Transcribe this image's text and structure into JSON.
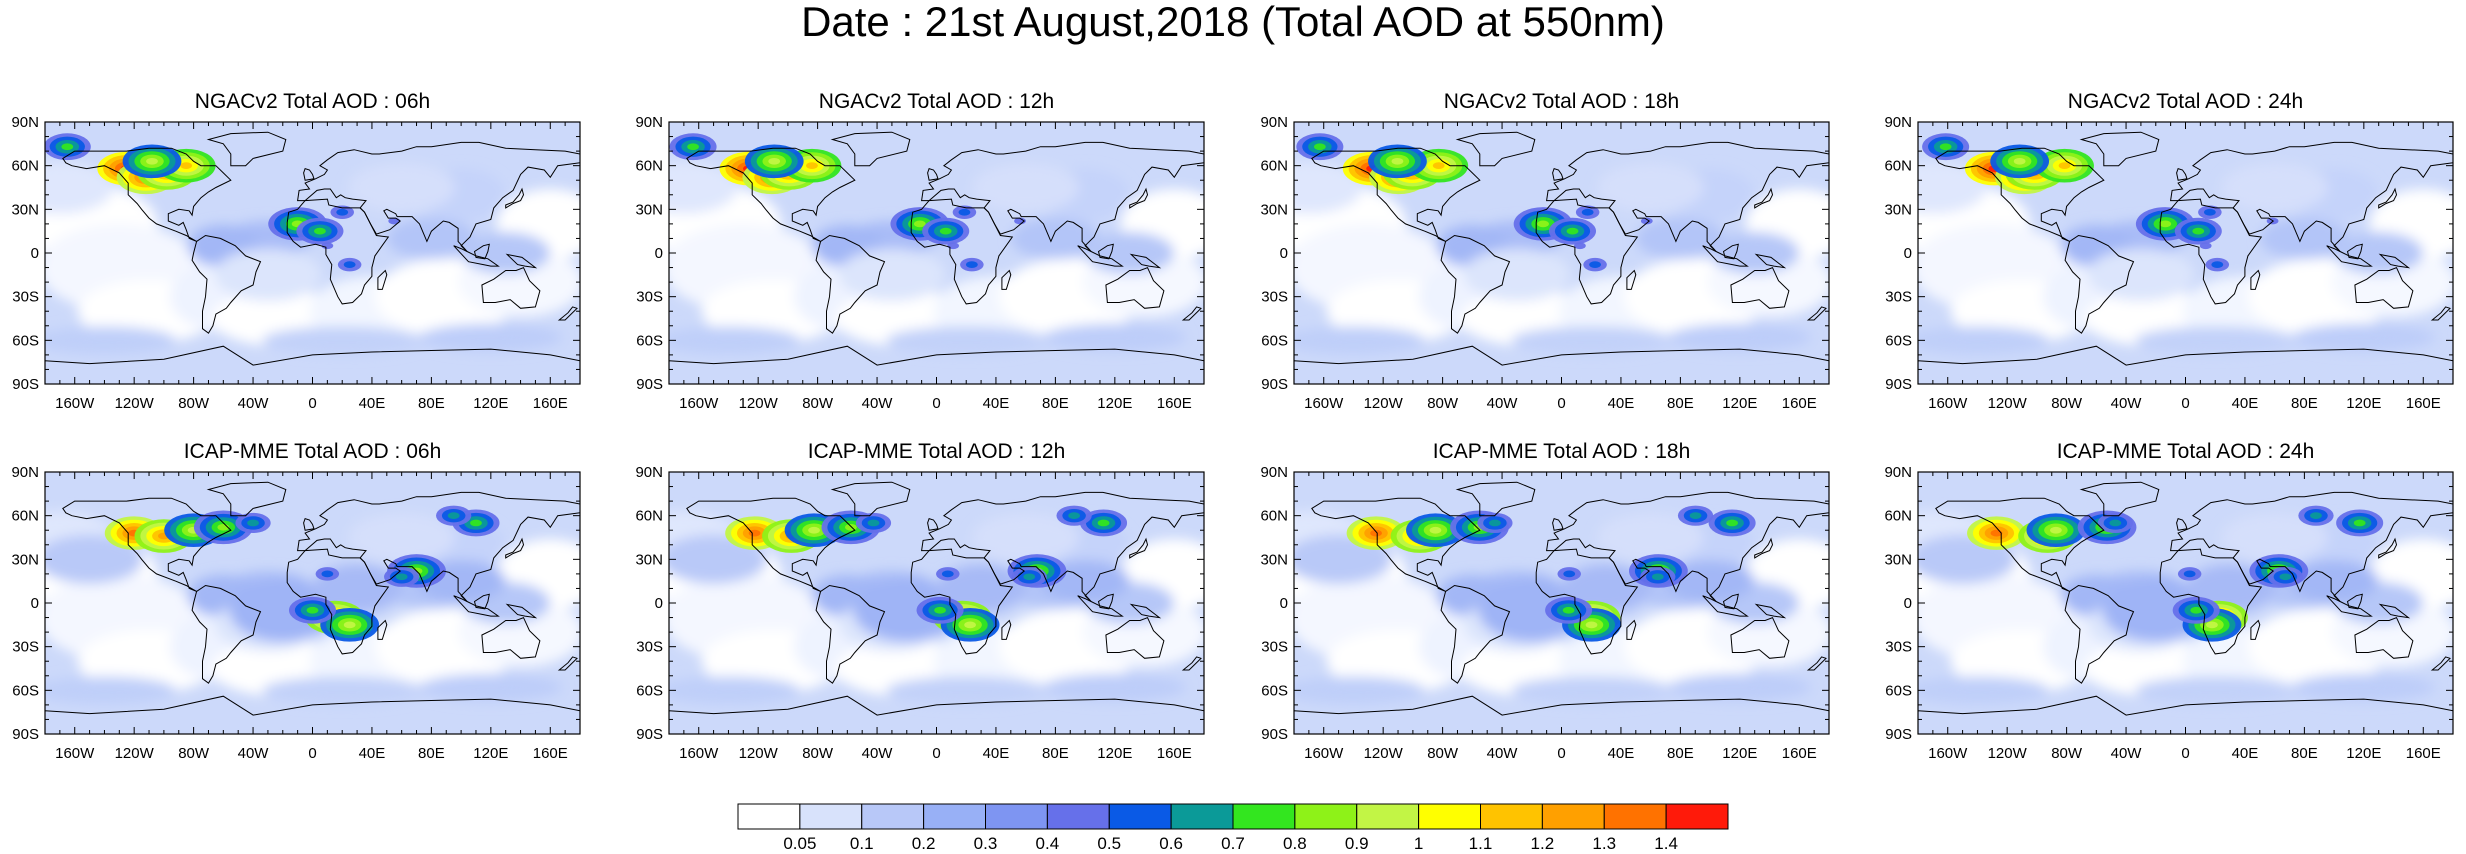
{
  "title": "Date : 21st August,2018 (Total AOD at 550nm)",
  "x_tick_labels": [
    "160W",
    "120W",
    "80W",
    "40W",
    "0",
    "40E",
    "80E",
    "120E",
    "160E"
  ],
  "y_tick_labels": [
    "90N",
    "60N",
    "30N",
    "0",
    "30S",
    "60S",
    "90S"
  ],
  "panels": [
    {
      "title": "NGACv2 Total AOD : 06h",
      "model": "NGACv2",
      "hour": "06h"
    },
    {
      "title": "NGACv2 Total AOD : 12h",
      "model": "NGACv2",
      "hour": "12h"
    },
    {
      "title": "NGACv2 Total AOD : 18h",
      "model": "NGACv2",
      "hour": "18h"
    },
    {
      "title": "NGACv2 Total AOD : 24h",
      "model": "NGACv2",
      "hour": "24h"
    },
    {
      "title": "ICAP-MME Total AOD : 06h",
      "model": "ICAP-MME",
      "hour": "06h"
    },
    {
      "title": "ICAP-MME Total AOD : 12h",
      "model": "ICAP-MME",
      "hour": "12h"
    },
    {
      "title": "ICAP-MME Total AOD : 18h",
      "model": "ICAP-MME",
      "hour": "18h"
    },
    {
      "title": "ICAP-MME Total AOD : 24h",
      "model": "ICAP-MME",
      "hour": "24h"
    }
  ],
  "colorbar": {
    "labels": [
      "0.05",
      "0.1",
      "0.2",
      "0.3",
      "0.4",
      "0.5",
      "0.6",
      "0.7",
      "0.8",
      "0.9",
      "1",
      "1.1",
      "1.2",
      "1.3",
      "1.4"
    ],
    "colors": [
      "#ffffff",
      "#d8e2fb",
      "#b8c8f8",
      "#98b0f6",
      "#7e95f2",
      "#6670ea",
      "#0a5ae6",
      "#0b9a98",
      "#33e61f",
      "#8ef218",
      "#c2f545",
      "#ffff00",
      "#ffc300",
      "#ffa000",
      "#ff7200",
      "#ff1a0a"
    ]
  },
  "plumes": {
    "ngac": [
      {
        "lon": -125,
        "lat": 58,
        "level": 15
      },
      {
        "lon": -112,
        "lat": 52,
        "level": 14
      },
      {
        "lon": -98,
        "lat": 55,
        "level": 13
      },
      {
        "lon": -85,
        "lat": 60,
        "level": 12
      },
      {
        "lon": -108,
        "lat": 63,
        "level": 10
      },
      {
        "lon": -165,
        "lat": 73,
        "level": 8
      },
      {
        "lon": -10,
        "lat": 20,
        "level": 9
      },
      {
        "lon": 5,
        "lat": 15,
        "level": 8
      },
      {
        "lon": 20,
        "lat": 28,
        "level": 6
      },
      {
        "lon": 55,
        "lat": 22,
        "level": 5
      },
      {
        "lon": 25,
        "lat": -8,
        "level": 6
      },
      {
        "lon": 10,
        "lat": 5,
        "level": 5
      }
    ],
    "icap": [
      {
        "lon": -120,
        "lat": 48,
        "level": 14
      },
      {
        "lon": -100,
        "lat": 46,
        "level": 13
      },
      {
        "lon": -80,
        "lat": 50,
        "level": 10
      },
      {
        "lon": -60,
        "lat": 52,
        "level": 9
      },
      {
        "lon": -40,
        "lat": 55,
        "level": 7
      },
      {
        "lon": 15,
        "lat": -10,
        "level": 13
      },
      {
        "lon": 25,
        "lat": -15,
        "level": 10
      },
      {
        "lon": 0,
        "lat": -5,
        "level": 8
      },
      {
        "lon": 70,
        "lat": 22,
        "level": 9
      },
      {
        "lon": 60,
        "lat": 18,
        "level": 7
      },
      {
        "lon": 10,
        "lat": 20,
        "level": 6
      },
      {
        "lon": 110,
        "lat": 55,
        "level": 8
      },
      {
        "lon": 95,
        "lat": 60,
        "level": 7
      }
    ]
  }
}
